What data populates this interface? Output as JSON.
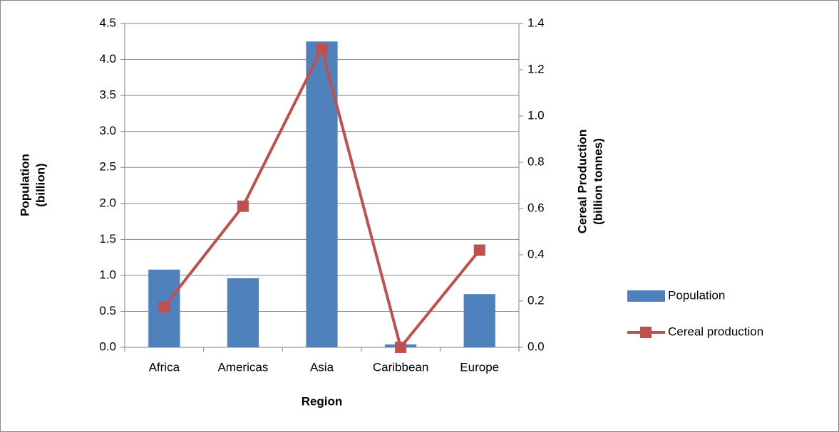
{
  "chart_data": {
    "type": "bar",
    "x_label": "Region",
    "y_label": [
      "Population",
      "(billion)"
    ],
    "y2_label": [
      "Cereal Production",
      "(billion tonnes)"
    ],
    "categories": [
      "Africa",
      "Americas",
      "Asia",
      "Caribbean",
      "Europe"
    ],
    "series": [
      {
        "name": "Population",
        "type": "bar",
        "color": "#4f81bd",
        "values": [
          1.08,
          0.96,
          4.25,
          0.04,
          0.74
        ]
      },
      {
        "name": "Cereal production",
        "type": "line",
        "axis": "y2",
        "color": "#c0504d",
        "values": [
          0.175,
          0.61,
          1.29,
          0.0,
          0.42
        ]
      }
    ],
    "ylim": [
      0,
      4.5
    ],
    "yticks": [
      {
        "value": 0,
        "label": "0.0"
      },
      0.5,
      {
        "value": 1,
        "label": "1.0"
      },
      1.5,
      {
        "value": 2,
        "label": "2.0"
      },
      2.5,
      {
        "value": 3,
        "label": "3.0"
      },
      3.5,
      {
        "value": 4,
        "label": "4.0"
      },
      4.5
    ],
    "y2lim": [
      0,
      1.4
    ],
    "y2ticks": [
      {
        "value": 0,
        "label": "0.0"
      },
      0.2,
      0.4,
      0.6,
      0.8,
      {
        "value": 1,
        "label": "1.0"
      },
      1.2,
      1.4
    ],
    "grid": true,
    "legend": "right"
  }
}
